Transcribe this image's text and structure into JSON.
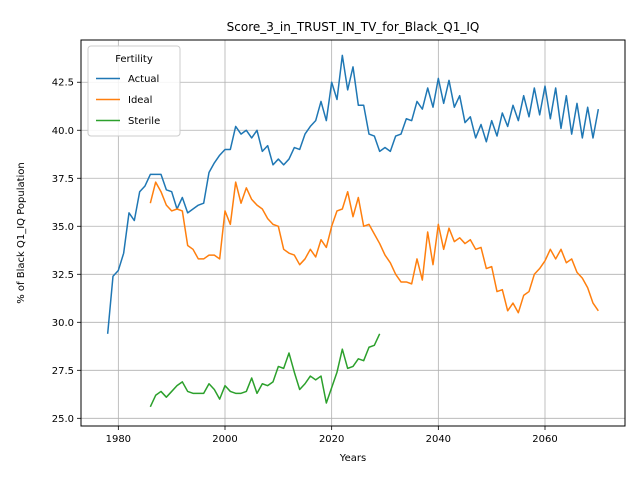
{
  "chart_data": {
    "type": "line",
    "title": "Score_3_in_TRUST_IN_TV_for_Black_Q1_IQ",
    "xlabel": "Years",
    "ylabel": "% of Black Q1_IQ Population",
    "xlim": [
      1973,
      2075
    ],
    "ylim": [
      24.6,
      44.7
    ],
    "xticks": [
      1980,
      2000,
      2020,
      2040,
      2060
    ],
    "yticks": [
      25.0,
      27.5,
      30.0,
      32.5,
      35.0,
      37.5,
      40.0,
      42.5
    ],
    "grid": true,
    "legend": {
      "title": "Fertility",
      "placement": "top-left"
    },
    "series": [
      {
        "name": "Actual",
        "color": "#1f77b4",
        "x": [
          1978,
          1979,
          1980,
          1981,
          1982,
          1983,
          1984,
          1985,
          1986,
          1987,
          1988,
          1989,
          1990,
          1991,
          1992,
          1993,
          1994,
          1995,
          1996,
          1997,
          1998,
          1999,
          2000,
          2001,
          2002,
          2003,
          2004,
          2005,
          2006,
          2007,
          2008,
          2009,
          2010,
          2011,
          2012,
          2013,
          2014,
          2015,
          2016,
          2017,
          2018,
          2019,
          2020,
          2021,
          2022,
          2023,
          2024,
          2025,
          2026,
          2027,
          2028,
          2029,
          2030,
          2031,
          2032,
          2033,
          2034,
          2035,
          2036,
          2037,
          2038,
          2039,
          2040,
          2041,
          2042,
          2043,
          2044,
          2045,
          2046,
          2047,
          2048,
          2049,
          2050,
          2051,
          2052,
          2053,
          2054,
          2055,
          2056,
          2057,
          2058,
          2059,
          2060,
          2061,
          2062,
          2063,
          2064,
          2065,
          2066,
          2067,
          2068,
          2069,
          2070
        ],
        "values": [
          29.4,
          32.4,
          32.7,
          33.6,
          35.7,
          35.3,
          36.8,
          37.1,
          37.7,
          37.7,
          37.7,
          36.9,
          36.8,
          35.9,
          36.5,
          35.7,
          35.9,
          36.1,
          36.2,
          37.8,
          38.3,
          38.7,
          39.0,
          39.0,
          40.2,
          39.8,
          40.0,
          39.6,
          40.0,
          38.9,
          39.2,
          38.2,
          38.5,
          38.2,
          38.5,
          39.1,
          39.0,
          39.8,
          40.2,
          40.5,
          41.5,
          40.5,
          42.5,
          41.6,
          43.9,
          42.1,
          43.3,
          41.3,
          41.3,
          39.8,
          39.7,
          38.9,
          39.1,
          38.9,
          39.7,
          39.8,
          40.6,
          40.5,
          41.5,
          41.1,
          42.2,
          41.2,
          42.7,
          41.4,
          42.6,
          41.2,
          41.8,
          40.4,
          40.7,
          39.6,
          40.3,
          39.4,
          40.5,
          39.7,
          40.9,
          40.2,
          41.3,
          40.5,
          41.8,
          40.7,
          42.2,
          40.8,
          42.3,
          40.6,
          42.2,
          40.1,
          41.8,
          39.8,
          41.4,
          39.6,
          41.2,
          39.6,
          41.1
        ]
      },
      {
        "name": "Ideal",
        "color": "#ff7f0e",
        "x": [
          1986,
          1987,
          1988,
          1989,
          1990,
          1991,
          1992,
          1993,
          1994,
          1995,
          1996,
          1997,
          1998,
          1999,
          2000,
          2001,
          2002,
          2003,
          2004,
          2005,
          2006,
          2007,
          2008,
          2009,
          2010,
          2011,
          2012,
          2013,
          2014,
          2015,
          2016,
          2017,
          2018,
          2019,
          2020,
          2021,
          2022,
          2023,
          2024,
          2025,
          2026,
          2027,
          2028,
          2029,
          2030,
          2031,
          2032,
          2033,
          2034,
          2035,
          2036,
          2037,
          2038,
          2039,
          2040,
          2041,
          2042,
          2043,
          2044,
          2045,
          2046,
          2047,
          2048,
          2049,
          2050,
          2051,
          2052,
          2053,
          2054,
          2055,
          2056,
          2057,
          2058,
          2059,
          2060,
          2061,
          2062,
          2063,
          2064,
          2065,
          2066,
          2067,
          2068,
          2069,
          2070
        ],
        "values": [
          36.2,
          37.3,
          36.8,
          36.1,
          35.8,
          35.9,
          35.8,
          34.0,
          33.8,
          33.3,
          33.3,
          33.5,
          33.5,
          33.3,
          35.8,
          35.1,
          37.3,
          36.2,
          37.0,
          36.4,
          36.1,
          35.9,
          35.4,
          35.1,
          35.0,
          33.8,
          33.6,
          33.5,
          33.0,
          33.3,
          33.8,
          33.4,
          34.3,
          33.9,
          35.0,
          35.8,
          35.9,
          36.8,
          35.5,
          36.5,
          35.0,
          35.1,
          34.6,
          34.1,
          33.5,
          33.1,
          32.5,
          32.1,
          32.1,
          32.0,
          33.3,
          32.2,
          34.7,
          33.0,
          35.1,
          33.8,
          34.9,
          34.2,
          34.4,
          34.1,
          34.3,
          33.8,
          33.9,
          32.8,
          32.9,
          31.6,
          31.7,
          30.6,
          31.0,
          30.5,
          31.4,
          31.6,
          32.5,
          32.8,
          33.2,
          33.8,
          33.3,
          33.8,
          33.1,
          33.3,
          32.6,
          32.3,
          31.8,
          31.0,
          30.6
        ]
      },
      {
        "name": "Sterile",
        "color": "#2ca02c",
        "x": [
          1986,
          1987,
          1988,
          1989,
          1990,
          1991,
          1992,
          1993,
          1994,
          1995,
          1996,
          1997,
          1998,
          1999,
          2000,
          2001,
          2002,
          2003,
          2004,
          2005,
          2006,
          2007,
          2008,
          2009,
          2010,
          2011,
          2012,
          2013,
          2014,
          2015,
          2016,
          2017,
          2018,
          2019,
          2020,
          2021,
          2022,
          2023,
          2024,
          2025,
          2026,
          2027,
          2028,
          2029
        ],
        "values": [
          25.6,
          26.2,
          26.4,
          26.1,
          26.4,
          26.7,
          26.9,
          26.4,
          26.3,
          26.3,
          26.3,
          26.8,
          26.5,
          26.0,
          26.7,
          26.4,
          26.3,
          26.3,
          26.4,
          27.1,
          26.3,
          26.8,
          26.7,
          26.9,
          27.7,
          27.6,
          28.4,
          27.4,
          26.5,
          26.8,
          27.2,
          27.0,
          27.2,
          25.8,
          26.6,
          27.4,
          28.6,
          27.6,
          27.7,
          28.1,
          28.0,
          28.7,
          28.8,
          29.4
        ]
      }
    ]
  }
}
